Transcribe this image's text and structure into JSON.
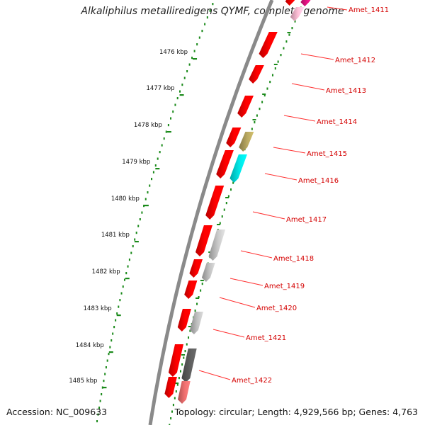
{
  "title": "Alkaliphilus metalliredigens QYMF, complete genome",
  "footer": {
    "accession": "Accession: NC_009633",
    "topology": "Topology: circular; Length: 4,929,566 bp; Genes: 4,763"
  },
  "colors": {
    "backbone": "#8a8a8a",
    "forward_gene": "#ff0000",
    "ticks": "#1a8a1a",
    "gene_label": "#d40000"
  },
  "kbp_ticks": [
    "1476 kbp",
    "1477 kbp",
    "1478 kbp",
    "1479 kbp",
    "1480 kbp",
    "1481 kbp",
    "1482 kbp",
    "1483 kbp",
    "1484 kbp",
    "1485 kbp"
  ],
  "gene_labels": [
    "Amet_1411",
    "Amet_1412",
    "Amet_1413",
    "Amet_1414",
    "Amet_1415",
    "Amet_1416",
    "Amet_1417",
    "Amet_1418",
    "Amet_1419",
    "Amet_1420",
    "Amet_1421",
    "Amet_1422"
  ]
}
